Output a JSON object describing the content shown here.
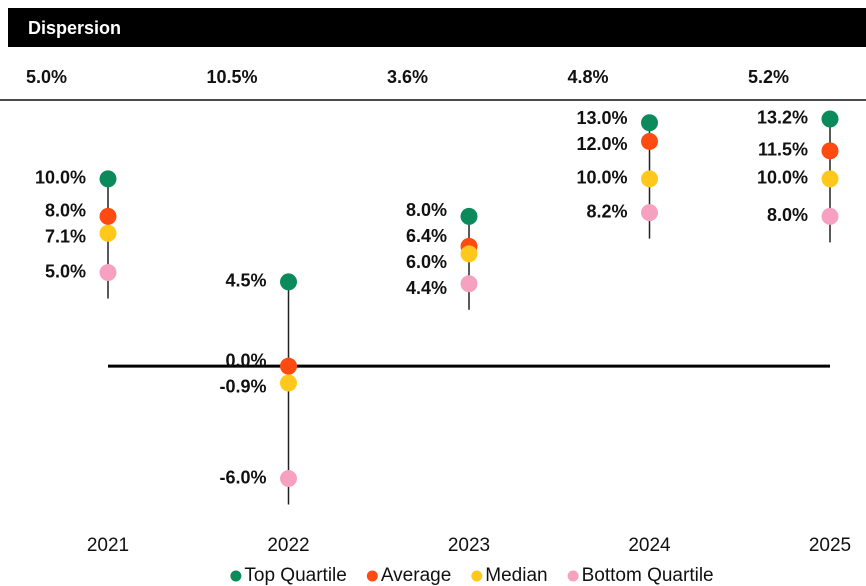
{
  "chart_data": {
    "type": "dot",
    "dispersion": {
      "title": "Dispersion",
      "values": [
        5.0,
        10.5,
        3.6,
        4.8,
        5.2
      ],
      "value_labels": [
        "5.0%",
        "10.5%",
        "3.6%",
        "4.8%",
        "5.2%"
      ]
    },
    "categories": [
      "2021",
      "2022",
      "2023",
      "2024",
      "2025"
    ],
    "series": [
      {
        "name": "Top Quartile",
        "color": "#0b8a5b",
        "values": [
          10.0,
          4.5,
          8.0,
          13.0,
          13.2
        ],
        "value_labels": [
          "10.0%",
          "4.5%",
          "8.0%",
          "13.0%",
          "13.2%"
        ]
      },
      {
        "name": "Average",
        "color": "#ff4a12",
        "values": [
          8.0,
          0.0,
          6.4,
          12.0,
          11.5
        ],
        "value_labels": [
          "8.0%",
          "0.0%",
          "6.4%",
          "12.0%",
          "11.5%"
        ]
      },
      {
        "name": "Median",
        "color": "#ffc81a",
        "values": [
          7.1,
          -0.9,
          6.0,
          10.0,
          10.0
        ],
        "value_labels": [
          "7.1%",
          "-0.9%",
          "6.0%",
          "10.0%",
          "10.0%"
        ]
      },
      {
        "name": "Bottom Quartile",
        "color": "#f7a1c0",
        "values": [
          5.0,
          -6.0,
          4.4,
          8.2,
          8.0
        ],
        "value_labels": [
          "5.0%",
          "-6.0%",
          "4.4%",
          "8.2%",
          "8.0%"
        ]
      }
    ],
    "ylim": [
      -8,
      14
    ]
  }
}
